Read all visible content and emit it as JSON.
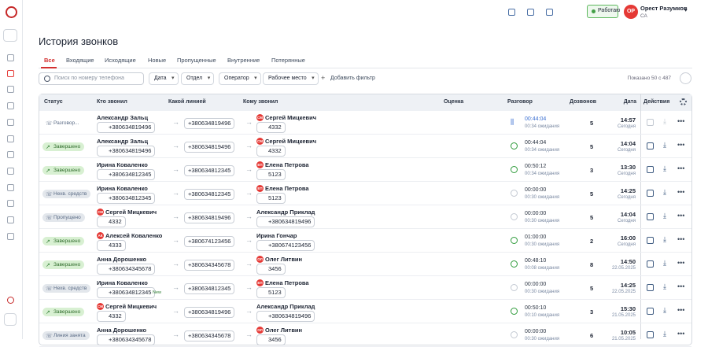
{
  "header": {
    "status": "Работаю",
    "user_initials": "ОР",
    "user_name": "Орест Разумков",
    "user_role": "СА"
  },
  "page": {
    "title": "История звонков",
    "tabs": [
      "Все",
      "Входящие",
      "Исходящие",
      "Новые",
      "Пропущенные",
      "Внутренние",
      "Потерянные"
    ],
    "search_placeholder": "Поиск по номеру телефона",
    "filters": [
      "Дата",
      "Отдел",
      "Оператор",
      "Рабочее место"
    ],
    "add_filter": "Добавить фильтр",
    "shown": "Показано 50 с 487"
  },
  "table": {
    "columns": [
      "Статус",
      "Кто звонил",
      "Какой линией",
      "Кому звонил",
      "Оценка",
      "Разговор",
      "Дозвонов",
      "Дата",
      "Действия"
    ],
    "rows": [
      {
        "status": "Разговор...",
        "caller": {
          "name": "Александр  Зальц",
          "phone": "+380634819496"
        },
        "line": "+380634819496",
        "callee": {
          "avatar": "СМ",
          "name": "Сергей Мицкевич",
          "phone": "4332"
        },
        "talk": "00:44:04",
        "wait": "00:34 ожидания",
        "attempts": 5,
        "time": "14:57",
        "day": "Сегодня"
      },
      {
        "status": "Завершено",
        "caller": {
          "name": "Александр Зальц",
          "phone": "+380634819496"
        },
        "line": "+380634819496",
        "callee": {
          "avatar": "СМ",
          "name": "Сергей Мицкевич",
          "phone": "4332"
        },
        "talk": "00:44:04",
        "wait": "00:34 ожидания",
        "attempts": 5,
        "time": "14:04",
        "day": "Сегодня"
      },
      {
        "status": "Завершено",
        "caller": {
          "name": "Ирина Коваленко",
          "phone": "+380634812345"
        },
        "line": "+380634812345",
        "callee": {
          "avatar": "ЕП",
          "name": "Елена Петрова",
          "phone": "5123"
        },
        "talk": "00:50:12",
        "wait": "00:34 ожидания",
        "attempts": 3,
        "time": "13:30",
        "day": "Сегодня"
      },
      {
        "status": "Нехв. средств",
        "caller": {
          "name": "Ирина Коваленко",
          "phone": "+380634812345"
        },
        "line": "+380634812345",
        "callee": {
          "avatar": "ЕП",
          "name": "Елена Петрова",
          "phone": "5123"
        },
        "talk": "00:00:00",
        "wait": "00:30 ожидания",
        "attempts": 5,
        "time": "14:25",
        "day": "Сегодня"
      },
      {
        "status": "Пропущено",
        "caller": {
          "avatar": "СМ",
          "name": "Сергей Мицкевич",
          "phone": "4332"
        },
        "line": "+380634819496",
        "callee": {
          "name": "Александр Приклад",
          "phone": "+380634819496"
        },
        "talk": "00:00:00",
        "wait": "00:30 ожидания",
        "attempts": 5,
        "time": "14:04",
        "day": "Сегодня"
      },
      {
        "status": "Завершено",
        "caller": {
          "avatar": "АК",
          "name": "Алексей Коваленко",
          "phone": "4333"
        },
        "line": "+380674123456",
        "callee": {
          "name": "Ирина Гончар",
          "phone": "+380674123456"
        },
        "talk": "01:00:00",
        "wait": "00:30 ожидания",
        "attempts": 2,
        "time": "16:00",
        "day": "Сегодня"
      },
      {
        "status": "Завершено",
        "caller": {
          "name": "Анна Дорошенко",
          "phone": "+380634345678"
        },
        "line": "+380634345678",
        "callee": {
          "avatar": "ОЛ",
          "name": "Олег Литвин",
          "phone": "3456"
        },
        "talk": "00:48:10",
        "wait": "00:08 ожидания",
        "attempts": 8,
        "time": "14:50",
        "day": "22.05.2025"
      },
      {
        "status": "Нехв. средств",
        "caller": {
          "name": "Ирина Коваленко",
          "phone": "+380634812345",
          "tag": "New"
        },
        "line": "+380634812345",
        "callee": {
          "avatar": "ЕП",
          "name": "Елена Петрова",
          "phone": "5123"
        },
        "talk": "00:00:00",
        "wait": "00:30 ожидания",
        "attempts": 5,
        "time": "14:25",
        "day": "22.05.2025"
      },
      {
        "status": "Завершено",
        "caller": {
          "avatar": "СМ",
          "name": "Сергей Мицкевич",
          "phone": "4332"
        },
        "line": "+380634819496",
        "callee": {
          "name": "Александр Приклад",
          "phone": "+380634819496"
        },
        "talk": "00:50:10",
        "wait": "00:10 ожидания",
        "attempts": 3,
        "time": "15:30",
        "day": "21.05.2025"
      },
      {
        "status": "Линия занята",
        "caller": {
          "name": "Анна Дорошенко",
          "phone": "+380634345678"
        },
        "line": "+380634345678",
        "callee": {
          "avatar": "ОЛ",
          "name": "Олег Литвин",
          "phone": "3456"
        },
        "talk": "00:00:00",
        "wait": "00:30 ожидания",
        "attempts": 6,
        "time": "10:05",
        "day": "21.05.2025"
      }
    ]
  }
}
